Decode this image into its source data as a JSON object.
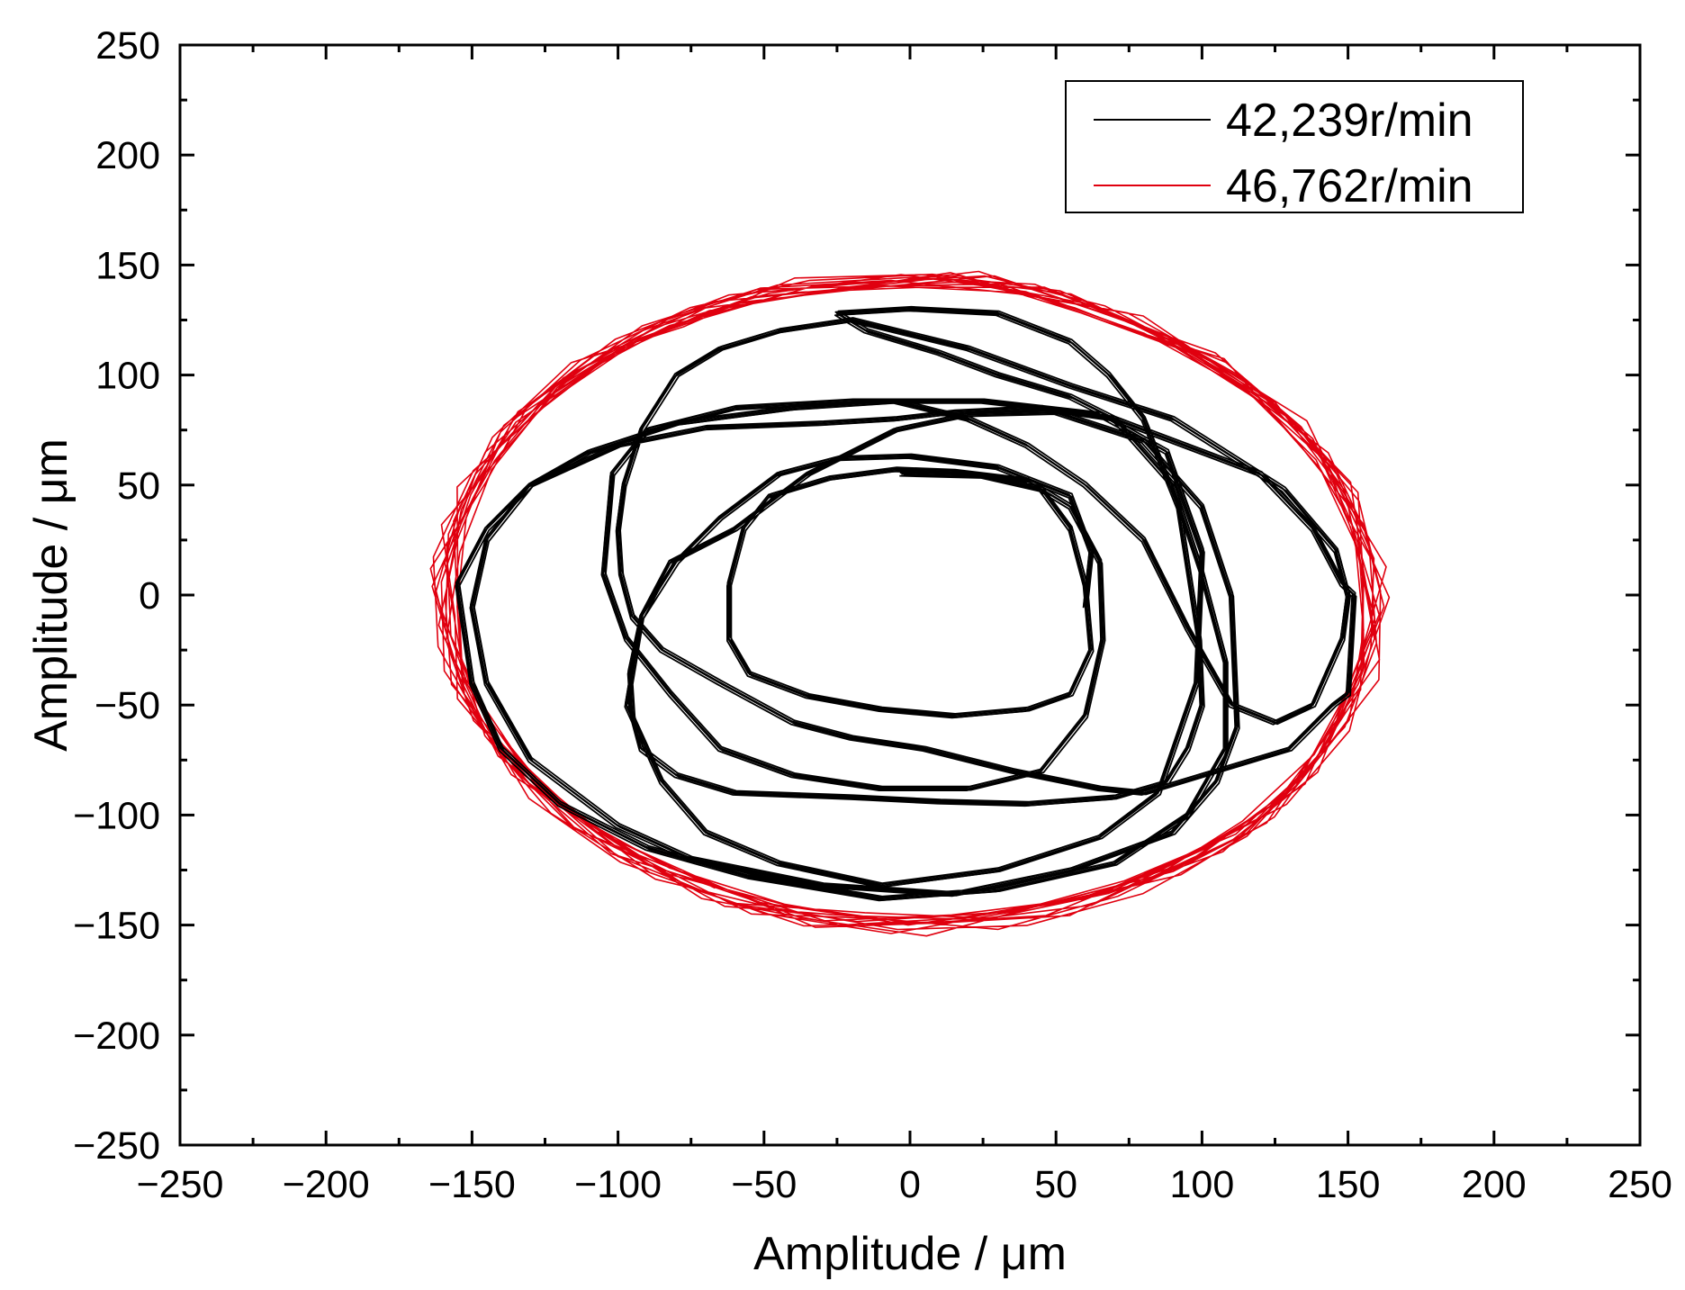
{
  "chart_data": {
    "type": "line",
    "title": "",
    "xlabel": "Amplitude / μm",
    "ylabel": "Amplitude / μm",
    "xlim": [
      -250,
      250
    ],
    "ylim": [
      -250,
      250
    ],
    "xticks": [
      -250,
      -200,
      -150,
      -100,
      -50,
      0,
      50,
      100,
      150,
      200,
      250
    ],
    "yticks": [
      -250,
      -200,
      -150,
      -100,
      -50,
      0,
      50,
      100,
      150,
      200,
      250
    ],
    "xtick_labels": [
      "−250",
      "−200",
      "−150",
      "−100",
      "−50",
      "0",
      "50",
      "100",
      "150",
      "200",
      "250"
    ],
    "ytick_labels": [
      "−250",
      "−200",
      "−150",
      "−100",
      "−50",
      "0",
      "50",
      "100",
      "150",
      "200",
      "250"
    ],
    "grid": false,
    "legend_position": "top-right",
    "series": [
      {
        "name": "42,239r/min",
        "color": "#000000",
        "points": [
          [
            -3,
            55
          ],
          [
            25,
            54
          ],
          [
            45,
            48
          ],
          [
            55,
            30
          ],
          [
            60,
            5
          ],
          [
            62,
            -25
          ],
          [
            55,
            -45
          ],
          [
            40,
            -52
          ],
          [
            15,
            -55
          ],
          [
            -10,
            -52
          ],
          [
            -35,
            -46
          ],
          [
            -55,
            -36
          ],
          [
            -62,
            -20
          ],
          [
            -62,
            5
          ],
          [
            -57,
            30
          ],
          [
            -48,
            45
          ],
          [
            -28,
            53
          ],
          [
            -5,
            57
          ],
          [
            15,
            56
          ],
          [
            40,
            52
          ],
          [
            55,
            40
          ],
          [
            65,
            15
          ],
          [
            66,
            -20
          ],
          [
            60,
            -55
          ],
          [
            45,
            -80
          ],
          [
            20,
            -88
          ],
          [
            -10,
            -88
          ],
          [
            -40,
            -82
          ],
          [
            -65,
            -70
          ],
          [
            -82,
            -45
          ],
          [
            -97,
            -20
          ],
          [
            -105,
            10
          ],
          [
            -102,
            55
          ],
          [
            -90,
            75
          ],
          [
            -60,
            85
          ],
          [
            -20,
            88
          ],
          [
            25,
            88
          ],
          [
            65,
            82
          ],
          [
            88,
            65
          ],
          [
            100,
            20
          ],
          [
            98,
            -40
          ],
          [
            85,
            -90
          ],
          [
            65,
            -110
          ],
          [
            30,
            -125
          ],
          [
            -10,
            -132
          ],
          [
            -45,
            -122
          ],
          [
            -70,
            -108
          ],
          [
            -85,
            -85
          ],
          [
            -97,
            -50
          ],
          [
            -92,
            -10
          ],
          [
            -82,
            15
          ],
          [
            -60,
            30
          ],
          [
            -35,
            55
          ],
          [
            -5,
            75
          ],
          [
            20,
            82
          ],
          [
            50,
            83
          ],
          [
            80,
            70
          ],
          [
            100,
            40
          ],
          [
            110,
            0
          ],
          [
            112,
            -60
          ],
          [
            105,
            -85
          ],
          [
            90,
            -108
          ],
          [
            55,
            -125
          ],
          [
            15,
            -136
          ],
          [
            -30,
            -132
          ],
          [
            -75,
            -120
          ],
          [
            -100,
            -105
          ],
          [
            -130,
            -75
          ],
          [
            -145,
            -40
          ],
          [
            -150,
            -5
          ],
          [
            -145,
            25
          ],
          [
            -130,
            50
          ],
          [
            -110,
            65
          ],
          [
            -80,
            78
          ],
          [
            -40,
            85
          ],
          [
            -5,
            88
          ],
          [
            20,
            80
          ],
          [
            40,
            68
          ],
          [
            60,
            50
          ],
          [
            80,
            25
          ],
          [
            95,
            -15
          ],
          [
            110,
            -50
          ],
          [
            125,
            -58
          ],
          [
            138,
            -50
          ],
          [
            148,
            -20
          ],
          [
            150,
            0
          ],
          [
            146,
            20
          ],
          [
            128,
            48
          ],
          [
            90,
            80
          ],
          [
            55,
            95
          ],
          [
            20,
            112
          ],
          [
            -20,
            125
          ],
          [
            -45,
            120
          ],
          [
            -65,
            112
          ],
          [
            -80,
            100
          ],
          [
            -92,
            75
          ],
          [
            -98,
            50
          ],
          [
            -100,
            30
          ],
          [
            -99,
            10
          ],
          [
            -95,
            -10
          ],
          [
            -85,
            -25
          ],
          [
            -65,
            -40
          ],
          [
            -40,
            -58
          ],
          [
            -20,
            -65
          ],
          [
            5,
            -70
          ],
          [
            35,
            -80
          ],
          [
            65,
            -88
          ],
          [
            80,
            -90
          ],
          [
            100,
            -82
          ],
          [
            130,
            -70
          ],
          [
            145,
            -50
          ],
          [
            150,
            -45
          ],
          [
            152,
            0
          ],
          [
            148,
            5
          ],
          [
            138,
            30
          ],
          [
            120,
            55
          ],
          [
            100,
            65
          ],
          [
            70,
            80
          ],
          [
            45,
            85
          ],
          [
            15,
            83
          ],
          [
            -5,
            80
          ],
          [
            -30,
            78
          ],
          [
            -70,
            76
          ],
          [
            -100,
            68
          ],
          [
            -130,
            50
          ],
          [
            -145,
            30
          ],
          [
            -155,
            5
          ],
          [
            -150,
            -40
          ],
          [
            -140,
            -70
          ],
          [
            -120,
            -95
          ],
          [
            -90,
            -115
          ],
          [
            -55,
            -128
          ],
          [
            -10,
            -138
          ],
          [
            30,
            -134
          ],
          [
            70,
            -122
          ],
          [
            95,
            -100
          ],
          [
            108,
            -70
          ],
          [
            108,
            -30
          ],
          [
            100,
            10
          ],
          [
            90,
            50
          ],
          [
            70,
            80
          ],
          [
            55,
            90
          ],
          [
            30,
            100
          ],
          [
            10,
            110
          ],
          [
            -15,
            120
          ],
          [
            -25,
            128
          ],
          [
            0,
            130
          ],
          [
            30,
            128
          ],
          [
            55,
            115
          ],
          [
            68,
            100
          ],
          [
            80,
            80
          ],
          [
            92,
            40
          ],
          [
            99,
            -20
          ],
          [
            100,
            -50
          ],
          [
            95,
            -70
          ],
          [
            88,
            -85
          ],
          [
            70,
            -92
          ],
          [
            40,
            -95
          ],
          [
            10,
            -94
          ],
          [
            -20,
            -92
          ],
          [
            -60,
            -90
          ],
          [
            -80,
            -82
          ],
          [
            -92,
            -70
          ],
          [
            -95,
            -55
          ],
          [
            -96,
            -35
          ],
          [
            -92,
            -10
          ],
          [
            -80,
            15
          ],
          [
            -65,
            35
          ],
          [
            -45,
            55
          ],
          [
            -25,
            62
          ],
          [
            0,
            63
          ],
          [
            30,
            58
          ],
          [
            55,
            45
          ],
          [
            62,
            20
          ],
          [
            60,
            -5
          ]
        ]
      },
      {
        "name": "46,762r/min",
        "color": "#e0000f",
        "center": [
          0,
          -3
        ],
        "rx": 160,
        "ry": 147,
        "rotation_deg": -6,
        "loops": 14,
        "jitter": 10
      }
    ]
  }
}
